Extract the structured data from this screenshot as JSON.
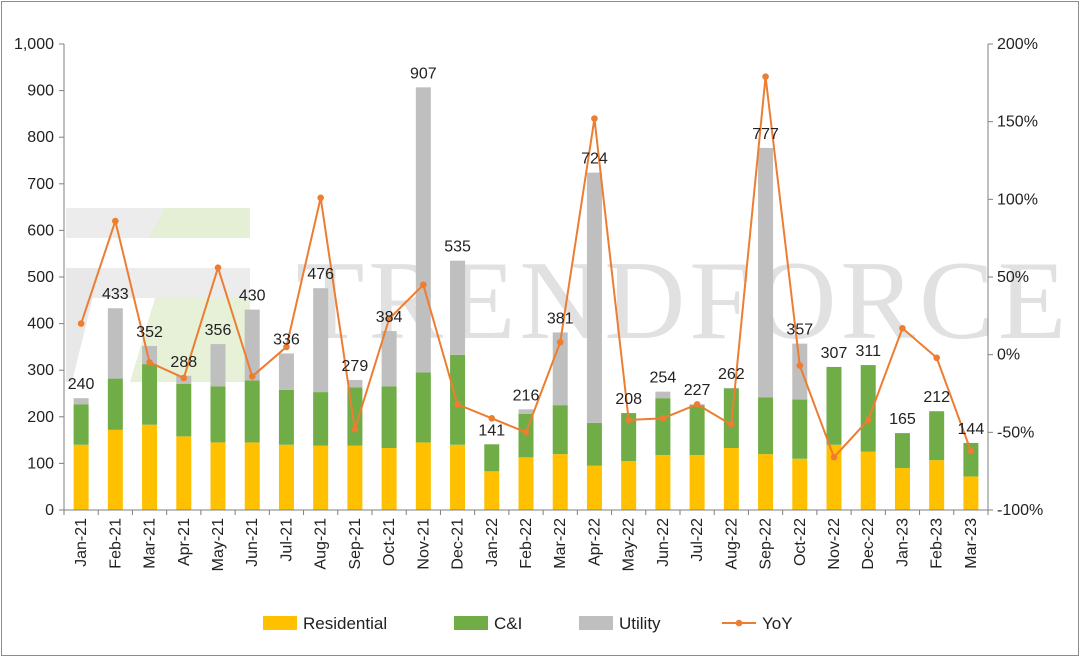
{
  "chart_data": {
    "type": "bar",
    "stacked": true,
    "categories": [
      "Jan-21",
      "Feb-21",
      "Mar-21",
      "Apr-21",
      "May-21",
      "Jun-21",
      "Jul-21",
      "Aug-21",
      "Sep-21",
      "Oct-21",
      "Nov-21",
      "Dec-21",
      "Jan-22",
      "Feb-22",
      "Mar-22",
      "Apr-22",
      "May-22",
      "Jun-22",
      "Jul-22",
      "Aug-22",
      "Sep-22",
      "Oct-22",
      "Nov-22",
      "Dec-22",
      "Jan-23",
      "Feb-23",
      "Mar-23"
    ],
    "series": [
      {
        "name": "Residential",
        "type": "bar",
        "axis": "left",
        "color": "#FFC000",
        "values": [
          140,
          172,
          183,
          158,
          145,
          145,
          140,
          138,
          138,
          133,
          145,
          140,
          83,
          113,
          120,
          95,
          105,
          118,
          118,
          133,
          120,
          110,
          140,
          125,
          90,
          107,
          72
        ]
      },
      {
        "name": "C&I",
        "type": "bar",
        "axis": "left",
        "color": "#70AD47",
        "values": [
          87,
          110,
          130,
          113,
          120,
          133,
          118,
          115,
          125,
          132,
          150,
          193,
          58,
          93,
          105,
          92,
          103,
          122,
          107,
          128,
          122,
          127,
          167,
          186,
          75,
          105,
          72
        ]
      },
      {
        "name": "Utility",
        "type": "bar",
        "axis": "left",
        "color": "#BFBFBF",
        "values": [
          13,
          151,
          39,
          17,
          91,
          152,
          78,
          223,
          16,
          119,
          612,
          202,
          0,
          10,
          156,
          537,
          0,
          14,
          2,
          1,
          535,
          120,
          0,
          0,
          0,
          0,
          0
        ]
      },
      {
        "name": "YoY",
        "type": "line",
        "axis": "right",
        "color": "#ED7D31",
        "values": [
          20,
          86,
          -5,
          -15,
          56,
          -14,
          5,
          101,
          -48,
          23,
          45,
          -32,
          -41,
          -50,
          8,
          152,
          -42,
          -41,
          -32,
          -45,
          179,
          -7,
          -66,
          -42,
          17,
          -2,
          -62
        ]
      }
    ],
    "totals": [
      240,
      433,
      352,
      288,
      356,
      430,
      336,
      476,
      279,
      384,
      907,
      535,
      141,
      216,
      381,
      724,
      208,
      254,
      227,
      262,
      777,
      357,
      307,
      311,
      165,
      212,
      144
    ],
    "total_labels": [
      "240",
      "433",
      "352",
      "288",
      "356",
      "430",
      "336",
      "476",
      "279",
      "384",
      "907",
      "535",
      "141",
      "216",
      "381",
      "724",
      "208",
      "254",
      "227",
      "262",
      "777",
      "357",
      "307",
      "311",
      "165",
      "212",
      "144"
    ],
    "left_axis": {
      "ylim": [
        0,
        1000
      ],
      "ticks": [
        "0",
        "100",
        "200",
        "300",
        "400",
        "500",
        "600",
        "700",
        "800",
        "900",
        "1,000"
      ]
    },
    "right_axis": {
      "ylim": [
        -100,
        200
      ],
      "ticks": [
        "-100%",
        "-50%",
        "0%",
        "50%",
        "100%",
        "150%",
        "200%"
      ]
    },
    "legend": {
      "position": "bottom",
      "items": [
        "Residential",
        "C&I",
        "Utility",
        "YoY"
      ]
    },
    "grid": false,
    "watermark": "TRENDFORCE",
    "colors": {
      "axis": "#7f7f7f",
      "watermark": "#c9c9c9",
      "logo_green": "#e3efd3",
      "logo_grey": "#dcdcdc"
    }
  }
}
